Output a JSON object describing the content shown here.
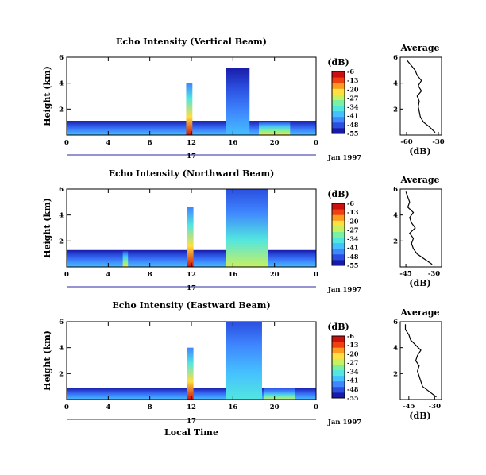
{
  "figure": {
    "xlabel": "Local Time",
    "date_label": "Jan 1997",
    "day_label": "17",
    "colorbar_unit": "(dB)",
    "avg_title": "Average",
    "avg_xlabel": "(dB)",
    "ylabel": "Height (km)"
  },
  "palette": [
    "#1a1aa8",
    "#2a4fe0",
    "#3f86ff",
    "#45c0ff",
    "#52e6e0",
    "#7af0a0",
    "#c8f060",
    "#ffe040",
    "#ff9a20",
    "#f04010",
    "#cc1010"
  ],
  "chart_data": [
    {
      "type": "heatmap",
      "title": "Echo Intensity (Vertical Beam)",
      "ylabel": "Height (km)",
      "xlabel": "",
      "x_ticks": [
        "0",
        "4",
        "8",
        "12",
        "16",
        "20",
        "0"
      ],
      "y_ticks": [
        "2",
        "4",
        "6"
      ],
      "xlim": [
        0,
        24
      ],
      "ylim": [
        0,
        6
      ],
      "colorbar_ticks": [
        "-6",
        "-13",
        "-20",
        "-27",
        "-34",
        "-41",
        "-48",
        "-55"
      ],
      "colorbar_range": [
        -55,
        -6
      ],
      "features": [
        {
          "x0": 0,
          "x1": 24,
          "y_top": 1.1,
          "level": 0.25
        },
        {
          "x0": 11.5,
          "x1": 12.1,
          "y_top": 4.0,
          "level": 0.95
        },
        {
          "x0": 15.3,
          "x1": 17.6,
          "y_top": 5.2,
          "level": 0.3
        },
        {
          "x0": 18.5,
          "x1": 21.5,
          "y_top": 1.0,
          "level": 0.65
        }
      ],
      "average_profile": {
        "xlabel": "(dB)",
        "x_ticks": [
          "-60",
          "-30"
        ],
        "xlim": [
          -66,
          -27
        ],
        "y_ticks": [
          "2",
          "4",
          "6"
        ],
        "heights": [
          0.2,
          0.6,
          1.0,
          1.4,
          1.8,
          2.2,
          2.6,
          3.0,
          3.4,
          3.8,
          4.2,
          4.6,
          5.0,
          5.4,
          5.8
        ],
        "values": [
          -33,
          -38,
          -44,
          -47,
          -48,
          -49,
          -48,
          -50,
          -46,
          -49,
          -46,
          -50,
          -52,
          -56,
          -60
        ]
      }
    },
    {
      "type": "heatmap",
      "title": "Echo Intensity (Northward Beam)",
      "ylabel": "Height (km)",
      "xlabel": "",
      "x_ticks": [
        "0",
        "4",
        "8",
        "12",
        "16",
        "20",
        "0"
      ],
      "y_ticks": [
        "2",
        "4",
        "6"
      ],
      "xlim": [
        0,
        24
      ],
      "ylim": [
        0,
        6
      ],
      "colorbar_ticks": [
        "-6",
        "-13",
        "-20",
        "-27",
        "-34",
        "-41",
        "-48",
        "-55"
      ],
      "colorbar_range": [
        -55,
        -6
      ],
      "features": [
        {
          "x0": 0,
          "x1": 24,
          "y_top": 1.3,
          "level": 0.25
        },
        {
          "x0": 11.6,
          "x1": 12.2,
          "y_top": 4.6,
          "level": 0.95
        },
        {
          "x0": 15.3,
          "x1": 19.4,
          "y_top": 6.0,
          "level": 0.55
        },
        {
          "x0": 5.4,
          "x1": 5.9,
          "y_top": 1.2,
          "level": 0.7
        }
      ],
      "average_profile": {
        "xlabel": "(dB)",
        "x_ticks": [
          "-45",
          "-30"
        ],
        "xlim": [
          -48,
          -26
        ],
        "y_ticks": [
          "2",
          "4",
          "6"
        ],
        "heights": [
          0.2,
          0.6,
          1.0,
          1.4,
          1.8,
          2.2,
          2.6,
          3.0,
          3.4,
          3.8,
          4.2,
          4.6,
          5.0,
          5.4,
          5.8
        ],
        "values": [
          -31,
          -35,
          -39,
          -41,
          -42,
          -41,
          -43,
          -40,
          -42,
          -43,
          -41,
          -44,
          -43,
          -44,
          -45
        ]
      }
    },
    {
      "type": "heatmap",
      "title": "Echo Intensity (Eastward Beam)",
      "ylabel": "Height (km)",
      "xlabel": "Local Time",
      "x_ticks": [
        "0",
        "4",
        "8",
        "12",
        "16",
        "20",
        "0"
      ],
      "y_ticks": [
        "2",
        "4",
        "6"
      ],
      "xlim": [
        0,
        24
      ],
      "ylim": [
        0,
        6
      ],
      "colorbar_ticks": [
        "-6",
        "-13",
        "-20",
        "-27",
        "-34",
        "-41",
        "-48",
        "-55"
      ],
      "colorbar_range": [
        -55,
        -6
      ],
      "features": [
        {
          "x0": 0,
          "x1": 24,
          "y_top": 0.9,
          "level": 0.25
        },
        {
          "x0": 11.6,
          "x1": 12.2,
          "y_top": 4.0,
          "level": 0.95
        },
        {
          "x0": 15.3,
          "x1": 18.8,
          "y_top": 6.0,
          "level": 0.35
        },
        {
          "x0": 19.0,
          "x1": 22.0,
          "y_top": 0.9,
          "level": 0.6
        }
      ],
      "average_profile": {
        "xlabel": "(dB)",
        "x_ticks": [
          "-45",
          "-30"
        ],
        "xlim": [
          -50,
          -26
        ],
        "y_ticks": [
          "2",
          "4",
          "6"
        ],
        "heights": [
          0.2,
          0.6,
          1.0,
          1.4,
          1.8,
          2.2,
          2.6,
          3.0,
          3.4,
          3.8,
          4.2,
          4.6,
          5.0,
          5.4,
          5.8
        ],
        "values": [
          -29,
          -33,
          -37,
          -38,
          -39,
          -40,
          -39,
          -41,
          -40,
          -38,
          -41,
          -44,
          -45,
          -47,
          -47
        ]
      }
    }
  ]
}
